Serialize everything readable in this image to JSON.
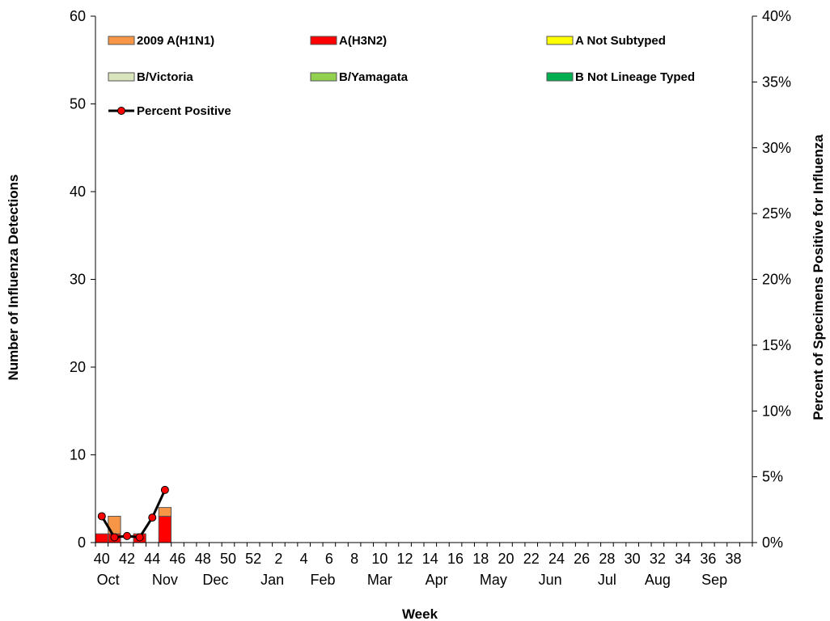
{
  "chart_data": {
    "type": "bar",
    "stacked": true,
    "xlabel": "Week",
    "ylabel": "Number of Influenza Detections",
    "y2label": "Percent of Specimens Positive for Influenza",
    "ylim": [
      0,
      60
    ],
    "yticks": [
      "0",
      "10",
      "20",
      "30",
      "40",
      "50",
      "60"
    ],
    "y2lim": [
      0,
      40
    ],
    "y2ticks": [
      "0%",
      "5%",
      "10%",
      "15%",
      "20%",
      "25%",
      "30%",
      "35%",
      "40%"
    ],
    "weeks": [
      40,
      41,
      42,
      43,
      44,
      45,
      46,
      47,
      48,
      49,
      50,
      51,
      52,
      1,
      2,
      3,
      4,
      5,
      6,
      7,
      8,
      9,
      10,
      11,
      12,
      13,
      14,
      15,
      16,
      17,
      18,
      19,
      20,
      21,
      22,
      23,
      24,
      25,
      26,
      27,
      28,
      29,
      30,
      31,
      32,
      33,
      34,
      35,
      36,
      37,
      38,
      39
    ],
    "week_tick_labels": [
      "40",
      "42",
      "44",
      "46",
      "48",
      "50",
      "52",
      "2",
      "4",
      "6",
      "8",
      "10",
      "12",
      "14",
      "16",
      "18",
      "20",
      "22",
      "24",
      "26",
      "28",
      "30",
      "32",
      "34",
      "36",
      "38"
    ],
    "month_labels": [
      {
        "label": "Oct",
        "week_index": 0.5
      },
      {
        "label": "Nov",
        "week_index": 5
      },
      {
        "label": "Dec",
        "week_index": 9
      },
      {
        "label": "Jan",
        "week_index": 13.5
      },
      {
        "label": "Feb",
        "week_index": 17.5
      },
      {
        "label": "Mar",
        "week_index": 22
      },
      {
        "label": "Apr",
        "week_index": 26.5
      },
      {
        "label": "May",
        "week_index": 31
      },
      {
        "label": "Jun",
        "week_index": 35.5
      },
      {
        "label": "Jul",
        "week_index": 40
      },
      {
        "label": "Aug",
        "week_index": 44
      },
      {
        "label": "Sep",
        "week_index": 48.5
      }
    ],
    "series": [
      {
        "name": "A(H3N2)",
        "color": "#ff0000",
        "values": [
          1,
          1,
          0,
          1,
          0,
          3
        ]
      },
      {
        "name": "2009 A(H1N1)",
        "color": "#f79646",
        "values": [
          0,
          2,
          0,
          0,
          0,
          1
        ]
      },
      {
        "name": "A Not Subtyped",
        "color": "#ffff00",
        "values": [
          0,
          0,
          0,
          0,
          0,
          0
        ]
      },
      {
        "name": "B/Victoria",
        "color": "#d8e4bc",
        "values": [
          0,
          0,
          0,
          0,
          0,
          0
        ]
      },
      {
        "name": "B/Yamagata",
        "color": "#92d050",
        "values": [
          0,
          0,
          0,
          0,
          0,
          0
        ]
      },
      {
        "name": "B Not Lineage Typed",
        "color": "#00b050",
        "values": [
          0,
          0,
          0,
          0,
          0,
          0
        ]
      }
    ],
    "percent_positive": {
      "name": "Percent Positive",
      "color": "#ff0000",
      "line_color": "#000000",
      "values": [
        2.0,
        0.4,
        0.5,
        0.4,
        1.9,
        4.0
      ]
    },
    "legend": {
      "placement": "top-left",
      "entries": [
        "2009 A(H1N1)",
        "A(H3N2)",
        "A Not Subtyped",
        "B/Victoria",
        "B/Yamagata",
        "B Not Lineage Typed",
        "Percent Positive"
      ]
    },
    "grid": false
  }
}
